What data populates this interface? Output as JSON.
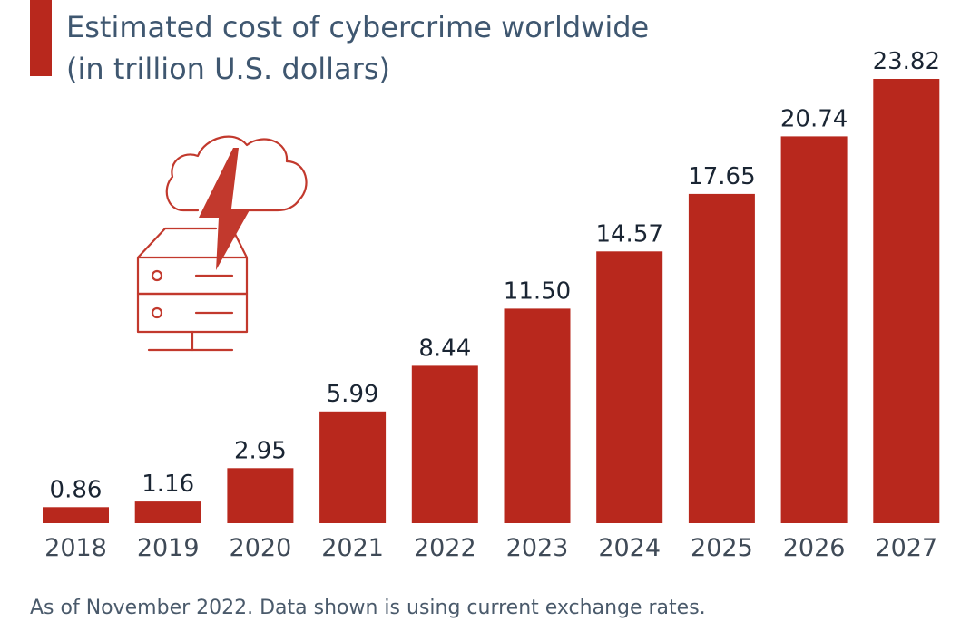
{
  "colors": {
    "accent": "#b8281d",
    "bar": "#b8281d",
    "title_text": "#3f5770",
    "icon_stroke": "#c2392d"
  },
  "header": {
    "title_line1": "Estimated cost of cybercrime worldwide",
    "title_line2": "(in trillion U.S. dollars)"
  },
  "illustration": {
    "icon": "cloud-server-lightning-icon"
  },
  "chart_data": {
    "type": "bar",
    "categories": [
      "2018",
      "2019",
      "2020",
      "2021",
      "2022",
      "2023",
      "2024",
      "2025",
      "2026",
      "2027"
    ],
    "values": [
      0.86,
      1.16,
      2.95,
      5.99,
      8.44,
      11.5,
      14.57,
      17.65,
      20.74,
      23.82
    ],
    "value_labels": [
      "0.86",
      "1.16",
      "2.95",
      "5.99",
      "8.44",
      "11.50",
      "14.57",
      "17.65",
      "20.74",
      "23.82"
    ],
    "title": "Estimated cost of cybercrime worldwide",
    "subtitle": "(in trillion U.S. dollars)",
    "ylim": [
      0,
      23.82
    ],
    "grid": false,
    "legend": "none"
  },
  "footer": {
    "note": "As of November 2022. Data shown is using current exchange rates."
  }
}
